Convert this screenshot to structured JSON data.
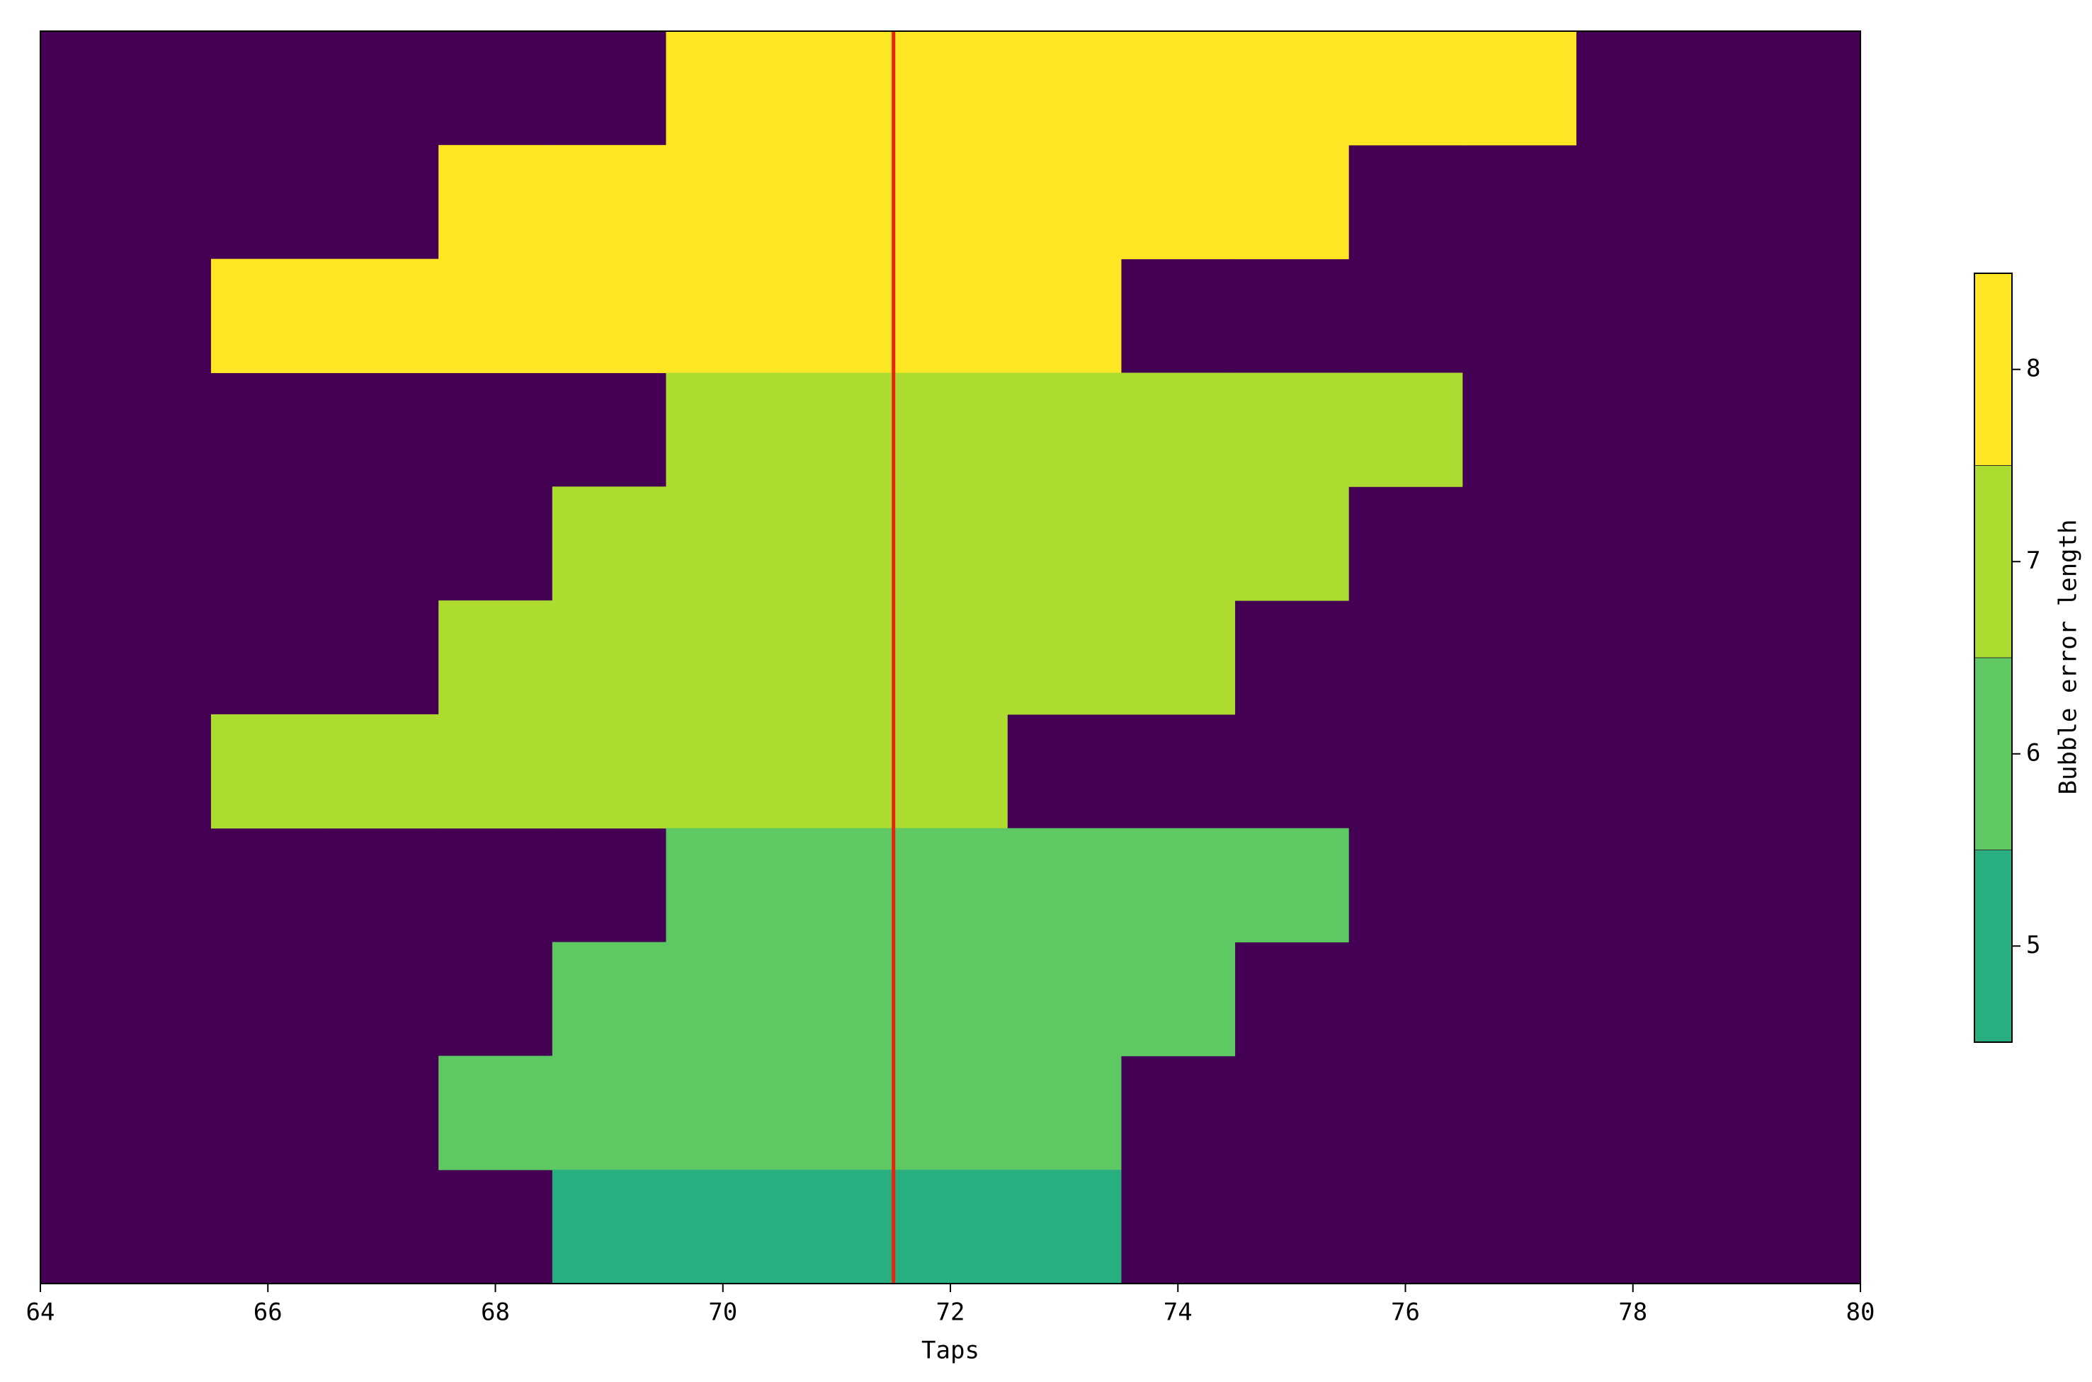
{
  "chart_data": {
    "type": "heatmap",
    "xlabel": "Taps",
    "x": [
      64,
      65,
      66,
      67,
      68,
      69,
      70,
      71,
      72,
      73,
      74,
      75,
      76,
      77,
      78,
      79,
      80
    ],
    "rows": [
      {
        "values": [
          null,
          null,
          null,
          null,
          null,
          null,
          8,
          8,
          8,
          8,
          8,
          8,
          8,
          8,
          null,
          null,
          null
        ]
      },
      {
        "values": [
          null,
          null,
          null,
          null,
          8,
          8,
          8,
          8,
          8,
          8,
          8,
          8,
          null,
          null,
          null,
          null,
          null
        ]
      },
      {
        "values": [
          null,
          null,
          8,
          8,
          8,
          8,
          8,
          8,
          8,
          8,
          null,
          null,
          null,
          null,
          null,
          null,
          null
        ]
      },
      {
        "values": [
          null,
          null,
          null,
          null,
          null,
          null,
          7,
          7,
          7,
          7,
          7,
          7,
          7,
          null,
          null,
          null,
          null
        ]
      },
      {
        "values": [
          null,
          null,
          null,
          null,
          null,
          7,
          7,
          7,
          7,
          7,
          7,
          7,
          null,
          null,
          null,
          null,
          null
        ]
      },
      {
        "values": [
          null,
          null,
          null,
          null,
          7,
          7,
          7,
          7,
          7,
          7,
          7,
          null,
          null,
          null,
          null,
          null,
          null
        ]
      },
      {
        "values": [
          null,
          null,
          7,
          7,
          7,
          7,
          7,
          7,
          7,
          null,
          null,
          null,
          null,
          null,
          null,
          null,
          null
        ]
      },
      {
        "values": [
          null,
          null,
          null,
          null,
          null,
          null,
          6,
          6,
          6,
          6,
          6,
          6,
          null,
          null,
          null,
          null,
          null
        ]
      },
      {
        "values": [
          null,
          null,
          null,
          null,
          null,
          6,
          6,
          6,
          6,
          6,
          6,
          null,
          null,
          null,
          null,
          null,
          null
        ]
      },
      {
        "values": [
          null,
          null,
          null,
          null,
          6,
          6,
          6,
          6,
          6,
          6,
          null,
          null,
          null,
          null,
          null,
          null,
          null
        ]
      },
      {
        "values": [
          null,
          null,
          null,
          null,
          null,
          5,
          5,
          5,
          5,
          5,
          null,
          null,
          null,
          null,
          null,
          null,
          null
        ]
      }
    ],
    "xlim": [
      64,
      80
    ],
    "xticks": [
      64,
      66,
      68,
      70,
      72,
      74,
      76,
      78,
      80
    ],
    "missing_color": "#440154",
    "vline": {
      "x": 71.5,
      "color": "#e8250c"
    },
    "colorbar": {
      "label": "Bubble error length",
      "clim": [
        4.5,
        8.5
      ],
      "ticks": [
        5,
        6,
        7,
        8
      ],
      "colors": [
        "#29af7f",
        "#5ec962",
        "#addc30",
        "#fde725"
      ]
    }
  }
}
